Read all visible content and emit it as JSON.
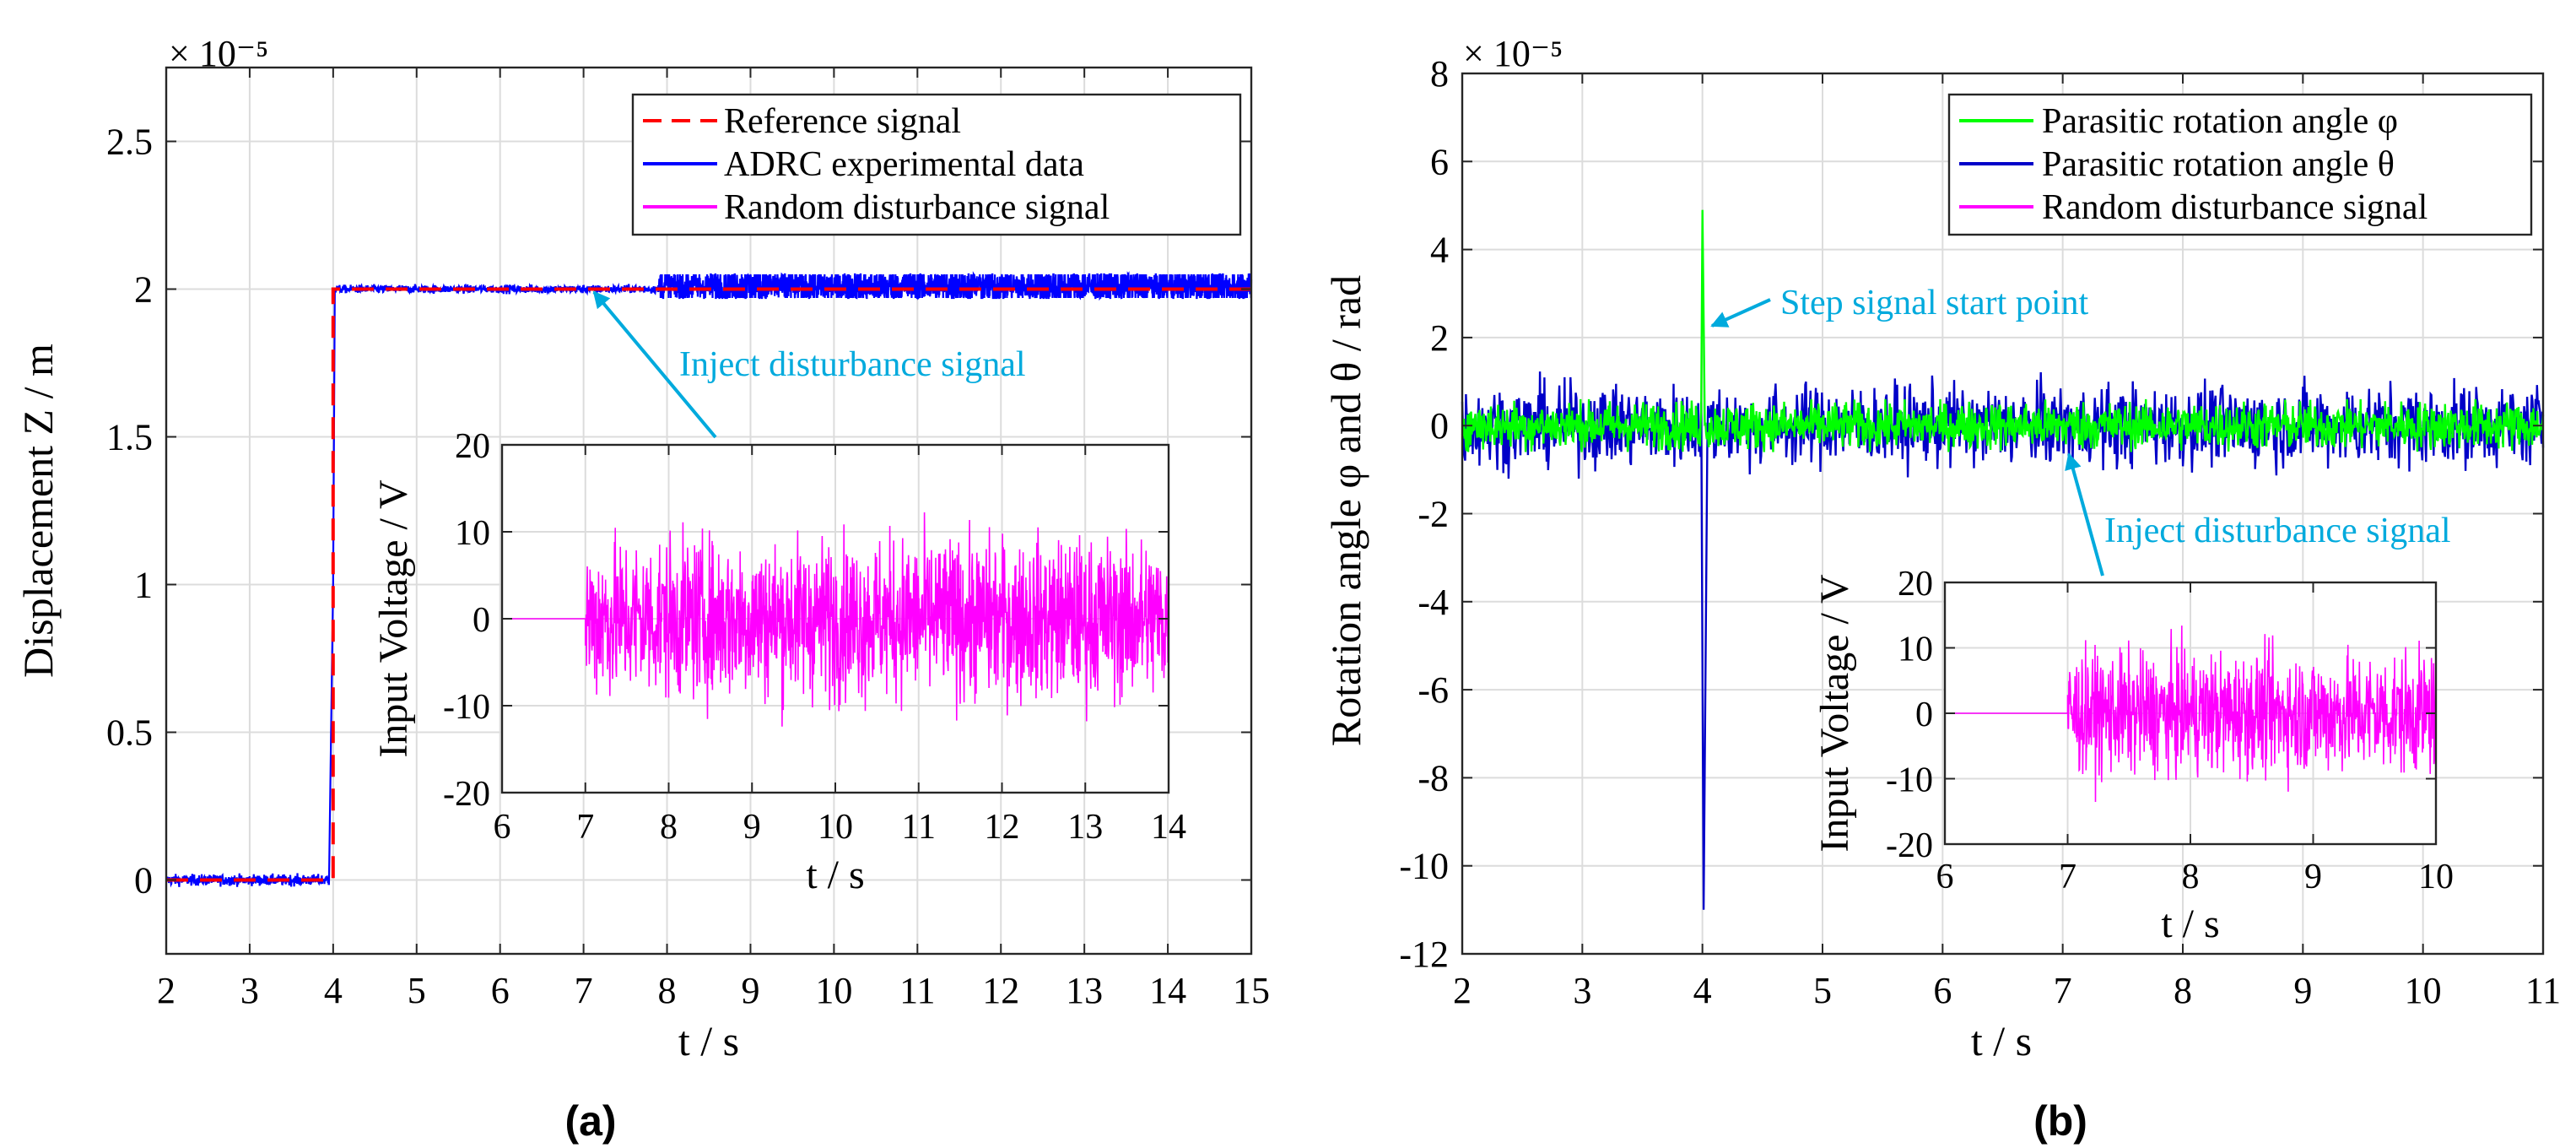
{
  "colors": {
    "reference": "#ff0000",
    "adrc": "#0000ff",
    "disturbance": "#ff00ff",
    "phi": "#00ff00",
    "theta": "#0000c8",
    "annotation": "#00aadd"
  },
  "chart_data": [
    {
      "type": "line",
      "panel_label": "(a)",
      "exponent_label": "× 10⁻⁵",
      "xlabel": "t / s",
      "ylabel": "Displacement  Z / m",
      "xlim": [
        2,
        15
      ],
      "ylim": [
        -0.25,
        2.75
      ],
      "xticks": [
        2,
        3,
        4,
        5,
        6,
        7,
        8,
        9,
        10,
        11,
        12,
        13,
        14,
        15
      ],
      "yticks": [
        0,
        0.5,
        1,
        1.5,
        2,
        2.5
      ],
      "grid": true,
      "legend_position": "top-right",
      "legend": [
        "Reference signal",
        "ADRC experimental data",
        "Random disturbance signal"
      ],
      "series": [
        {
          "name": "Reference signal",
          "style": "dashed",
          "x": [
            2,
            4,
            4,
            15
          ],
          "y": [
            0,
            0,
            2,
            2
          ]
        },
        {
          "name": "ADRC experimental data",
          "x": [
            2,
            3.95,
            4.02,
            7,
            8,
            15
          ],
          "y": [
            0,
            0.01,
            2.01,
            2.0,
            2.01,
            2.01
          ],
          "noise_before_8": 0.01,
          "noise_after_8": 0.035
        },
        {
          "name": "Random disturbance signal",
          "x": [
            6,
            7,
            7,
            14
          ],
          "y": [
            0,
            0,
            0,
            0
          ],
          "noise_amplitude_V": 10,
          "noise_peak_V": 16
        }
      ],
      "annotations": [
        {
          "text": "Inject disturbance signal",
          "x": 7,
          "y": 2.0
        }
      ],
      "inset": {
        "xlabel": "t / s",
        "ylabel": "Input Voltage / V",
        "xlim": [
          6,
          14
        ],
        "ylim": [
          -20,
          20
        ],
        "xticks": [
          6,
          7,
          8,
          9,
          10,
          11,
          12,
          13,
          14
        ],
        "yticks": [
          -20,
          -10,
          0,
          10,
          20
        ]
      }
    },
    {
      "type": "line",
      "panel_label": "(b)",
      "exponent_label": "× 10⁻⁵",
      "xlabel": "t / s",
      "ylabel": "Rotation angle φ and θ / rad",
      "xlim": [
        2,
        11
      ],
      "ylim": [
        -12,
        8
      ],
      "xticks": [
        2,
        3,
        4,
        5,
        6,
        7,
        8,
        9,
        10,
        11
      ],
      "yticks": [
        -12,
        -10,
        -8,
        -6,
        -4,
        -2,
        0,
        2,
        4,
        6,
        8
      ],
      "grid": true,
      "legend_position": "top-right",
      "legend": [
        "Parasitic rotation angle φ",
        "Parasitic rotation angle θ",
        "Random disturbance signal"
      ],
      "series": [
        {
          "name": "Parasitic rotation angle φ",
          "x": [
            2,
            4,
            4.0,
            4.02,
            11
          ],
          "y": [
            0,
            0,
            4.9,
            0,
            0
          ],
          "noise_amplitude": 0.6
        },
        {
          "name": "Parasitic rotation angle θ",
          "x": [
            2,
            4,
            4.02,
            4.04,
            11
          ],
          "y": [
            0,
            0,
            -11,
            0,
            0
          ],
          "noise_amplitude": 1.0,
          "noise_peak": 1.3
        },
        {
          "name": "Random disturbance signal",
          "x": [
            6,
            7,
            7,
            10
          ],
          "y": [
            0,
            0,
            0,
            0
          ],
          "noise_amplitude_V": 10,
          "noise_peak_V": 17
        }
      ],
      "annotations": [
        {
          "text": "Step signal start point",
          "x": 4.02,
          "y": 2.3
        },
        {
          "text": "Inject disturbance signal",
          "x": 7,
          "y": -0.5
        }
      ],
      "inset": {
        "xlabel": "t / s",
        "ylabel": "Input Voltage / V",
        "xlim": [
          6,
          10
        ],
        "ylim": [
          -20,
          20
        ],
        "xticks": [
          6,
          7,
          8,
          9,
          10
        ],
        "yticks": [
          -20,
          -10,
          0,
          10,
          20
        ]
      }
    }
  ]
}
